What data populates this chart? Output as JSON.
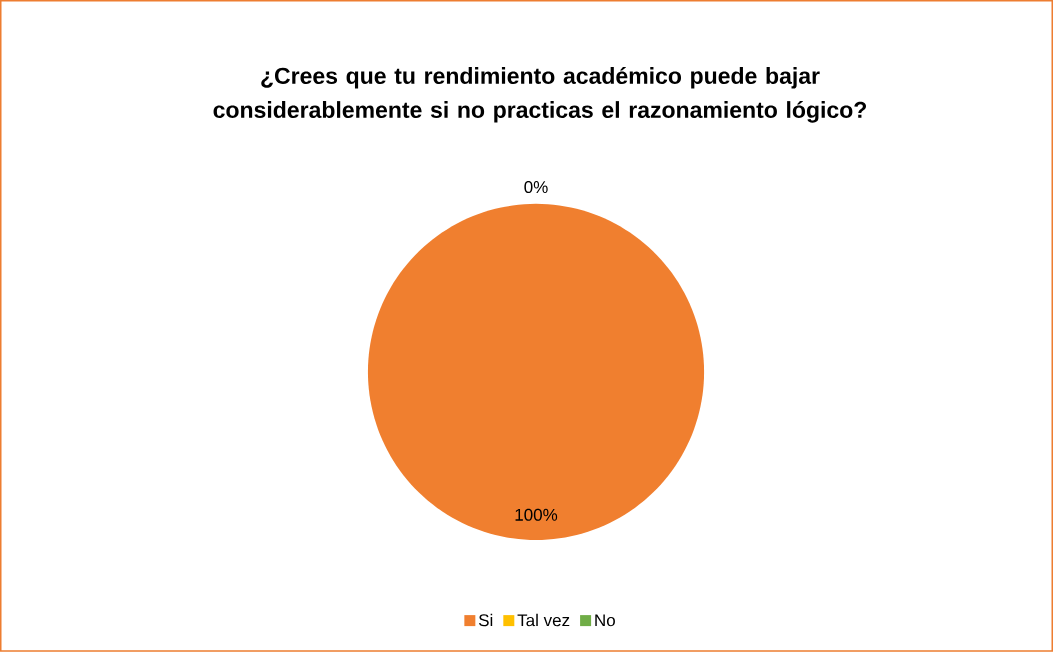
{
  "chart_data": {
    "type": "pie",
    "title": "¿Crees que tu rendimiento académico puede bajar considerablemente si no practicas el razonamiento lógico?",
    "categories": [
      "Si",
      "Tal vez",
      "No"
    ],
    "values": [
      100,
      0,
      0
    ],
    "value_labels": [
      "100%",
      "0%",
      null
    ],
    "colors": [
      "#f07f2f",
      "#ffc000",
      "#70ad47"
    ],
    "legend": "bottom"
  }
}
